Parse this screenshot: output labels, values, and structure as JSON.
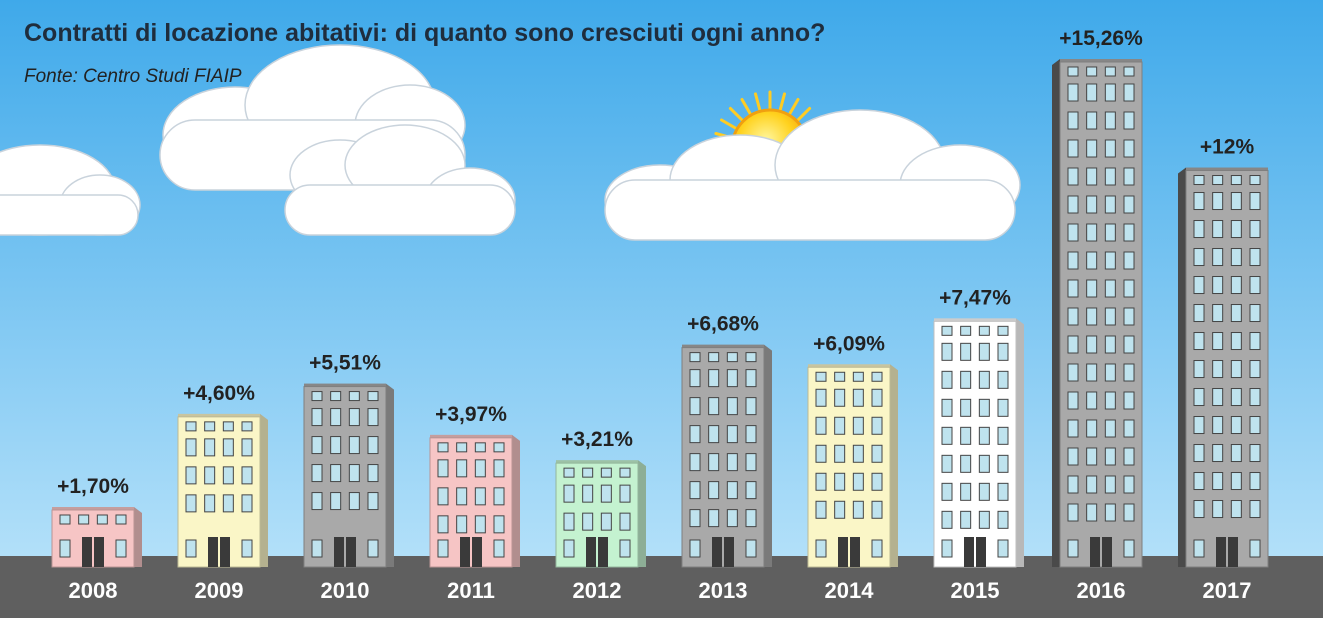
{
  "colors": {
    "sky_top": "#3fa9ea",
    "sky_bottom": "#bfe6fb",
    "ground": "#5f5f5f",
    "pink": "#f6c5c5",
    "yellow": "#faf6c7",
    "gray": "#a9a9a9",
    "green": "#c4f2d0",
    "white": "#ffffff",
    "window": "#bfe3ee",
    "door": "#3a3a3a"
  },
  "chart_data": {
    "type": "bar",
    "title": "Contratti di locazione abitativi: di quanto sono cresciuti ogni anno?",
    "subtitle": "Fonte: Centro Studi FIAIP",
    "categories": [
      "2008",
      "2009",
      "2010",
      "2011",
      "2012",
      "2013",
      "2014",
      "2015",
      "2016",
      "2017"
    ],
    "values": [
      1.7,
      4.6,
      5.51,
      3.97,
      3.21,
      6.68,
      6.09,
      7.47,
      15.26,
      12
    ],
    "value_labels": [
      "+1,70%",
      "+4,60%",
      "+5,51%",
      "+3,97%",
      "+3,21%",
      "+6,68%",
      "+6,09%",
      "+7,47%",
      "+15,26%",
      "+12%"
    ],
    "bar_styles": [
      "pink",
      "yellow",
      "gray",
      "pink",
      "green",
      "gray",
      "yellow",
      "white",
      "gray",
      "gray"
    ],
    "ylim": [
      0,
      15.26
    ],
    "grid": false,
    "legend": "none"
  }
}
